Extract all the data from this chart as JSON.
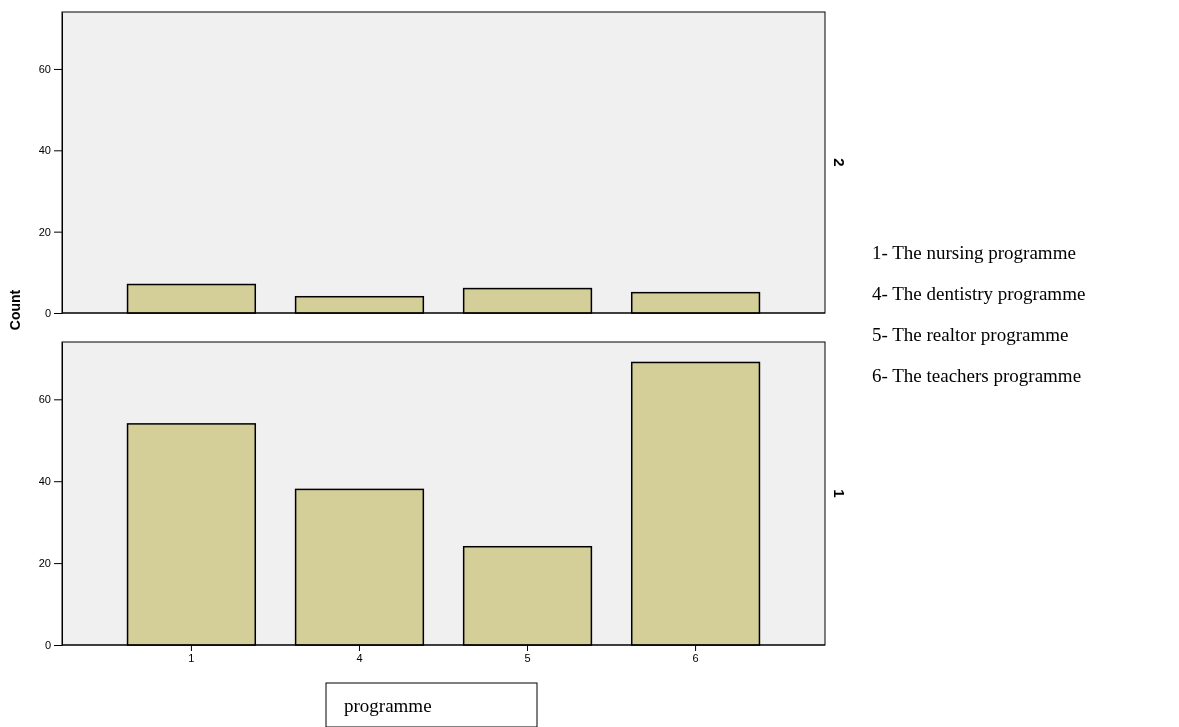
{
  "chart_data": [
    {
      "type": "bar",
      "title": "2",
      "ylabel": "Count",
      "categories": [
        null,
        null,
        null,
        null
      ],
      "values": [
        7,
        4,
        6,
        5
      ],
      "color": "#d4cf98",
      "ylim": [
        0,
        74
      ],
      "yticks": [
        0,
        20,
        40,
        60
      ],
      "grid": false,
      "tick_labels": "y",
      "annotations": [
        "1- The nursing programme",
        "4- The dentistry programme",
        "5- The realtor programme",
        "6- The teachers programme"
      ]
    },
    {
      "type": "bar",
      "title": "1",
      "xlabel": "programme",
      "categories": [
        "1",
        "4",
        "5",
        "6"
      ],
      "values": [
        54,
        38,
        24,
        69
      ],
      "color": "#d4cf98",
      "ylim": [
        0,
        74
      ],
      "yticks": [
        0,
        20,
        40,
        60
      ],
      "grid": false
    }
  ]
}
